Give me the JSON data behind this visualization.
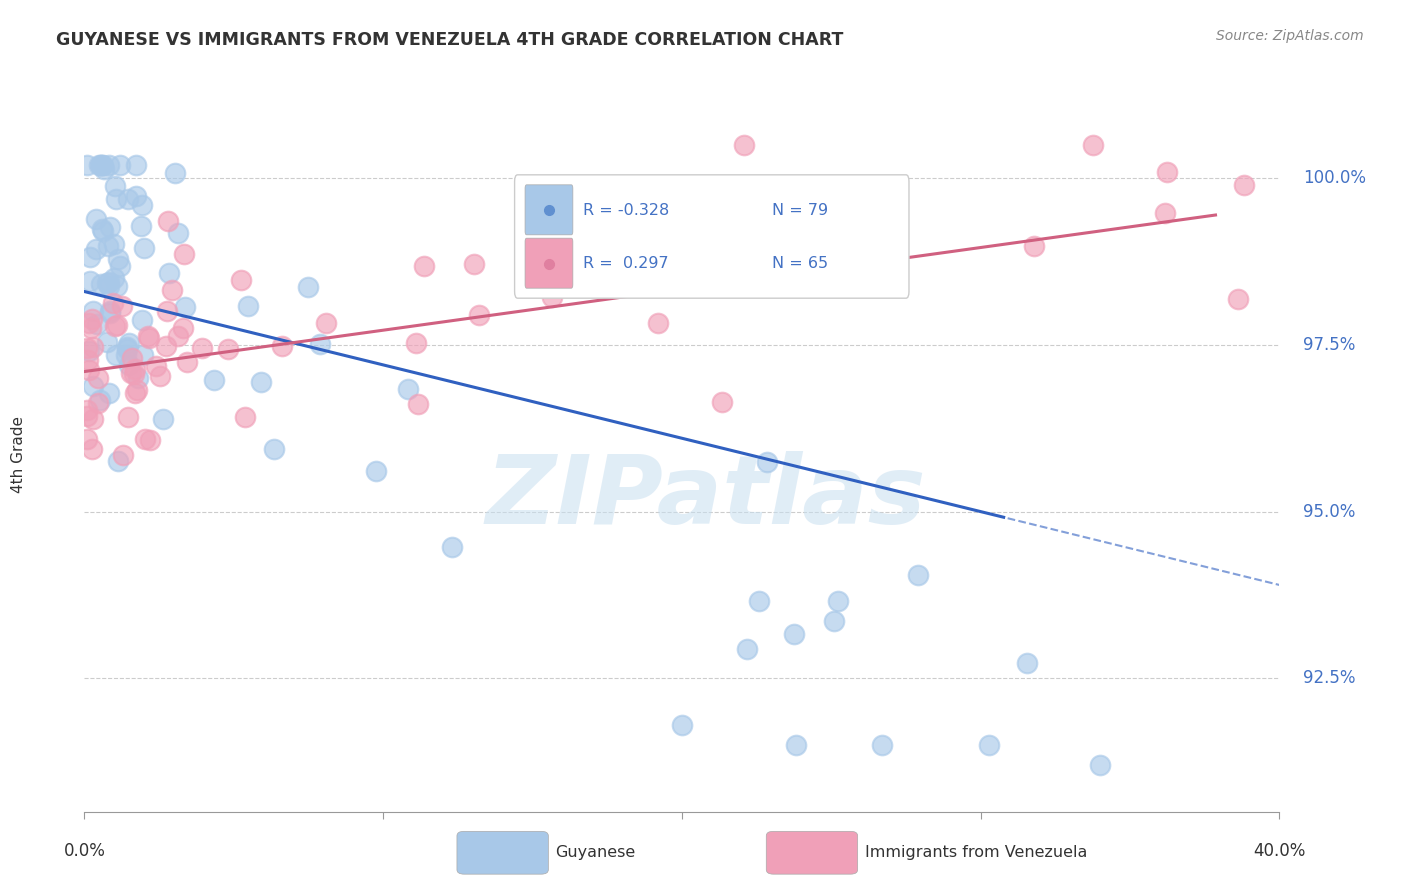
{
  "title": "GUYANESE VS IMMIGRANTS FROM VENEZUELA 4TH GRADE CORRELATION CHART",
  "source": "Source: ZipAtlas.com",
  "ylabel": "4th Grade",
  "xmin": 0.0,
  "xmax": 40.0,
  "ymin": 90.5,
  "ymax": 101.2,
  "blue_R": -0.328,
  "blue_N": 79,
  "pink_R": 0.297,
  "pink_N": 65,
  "blue_color": "#a8c8e8",
  "pink_color": "#f0a0b8",
  "blue_line_color": "#3060c0",
  "pink_line_color": "#d06080",
  "ytick_positions": [
    92.5,
    95.0,
    97.5,
    100.0
  ],
  "ytick_labels": [
    "92.5%",
    "95.0%",
    "97.5%",
    "100.0%"
  ],
  "watermark_text": "ZIPatlas",
  "legend_blue_text": "R = -0.328   N = 79",
  "legend_pink_text": "R =  0.297   N = 65"
}
